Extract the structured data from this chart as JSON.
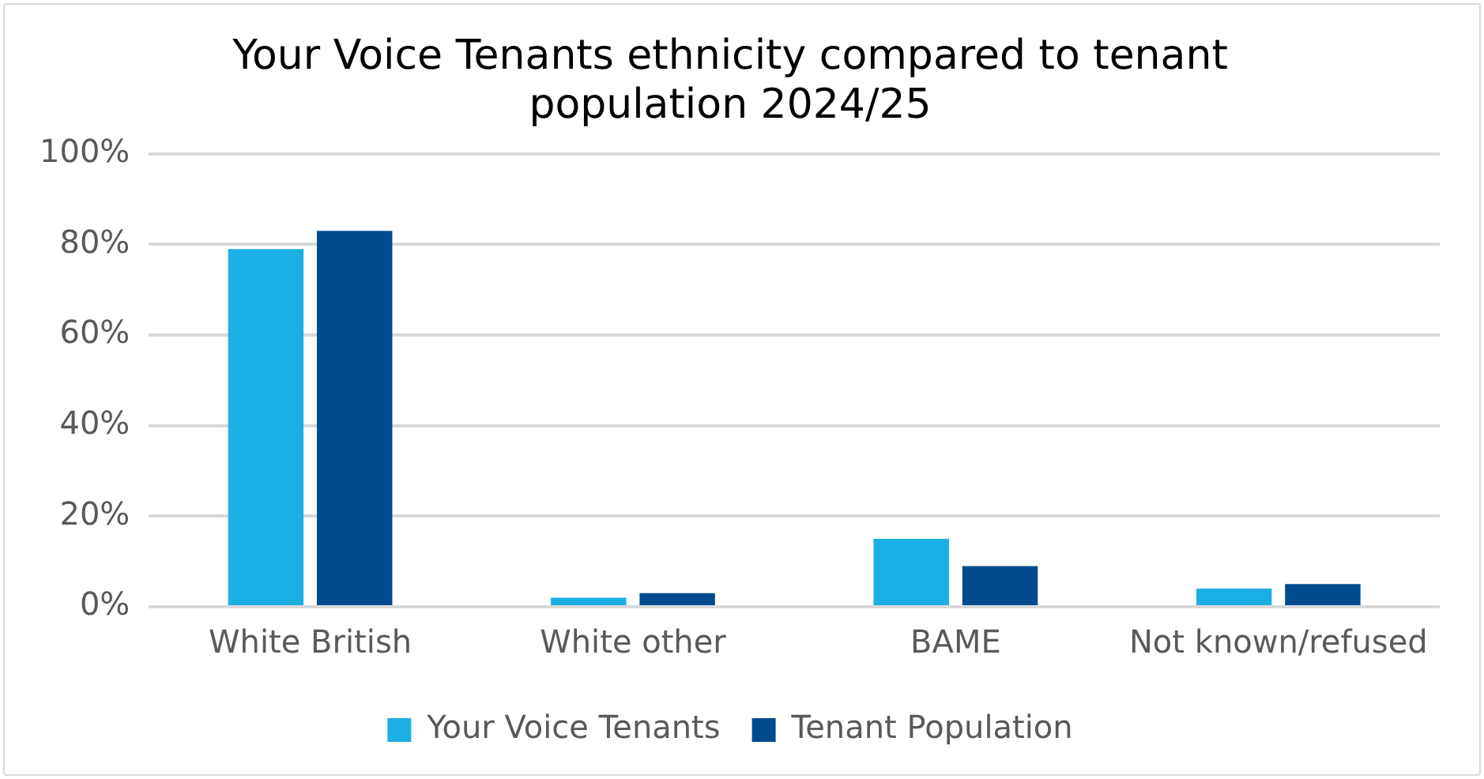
{
  "chart_data": {
    "type": "bar",
    "title": "Your Voice Tenants ethnicity compared to tenant population 2024/25",
    "categories": [
      "White British",
      "White other",
      "BAME",
      "Not known/refused"
    ],
    "series": [
      {
        "name": "Your Voice Tenants",
        "color": "#1cafe4",
        "values": [
          79,
          2,
          15,
          4
        ]
      },
      {
        "name": "Tenant Population",
        "color": "#004b8d",
        "values": [
          83,
          3,
          9,
          5
        ]
      }
    ],
    "ylim": [
      0,
      100
    ],
    "yticks": [
      {
        "value": 0,
        "label": "0%"
      },
      {
        "value": 20,
        "label": "20%"
      },
      {
        "value": 40,
        "label": "40%"
      },
      {
        "value": 60,
        "label": "60%"
      },
      {
        "value": 80,
        "label": "80%"
      },
      {
        "value": 100,
        "label": "100%"
      }
    ],
    "grid": "y",
    "legend": "bottom"
  }
}
